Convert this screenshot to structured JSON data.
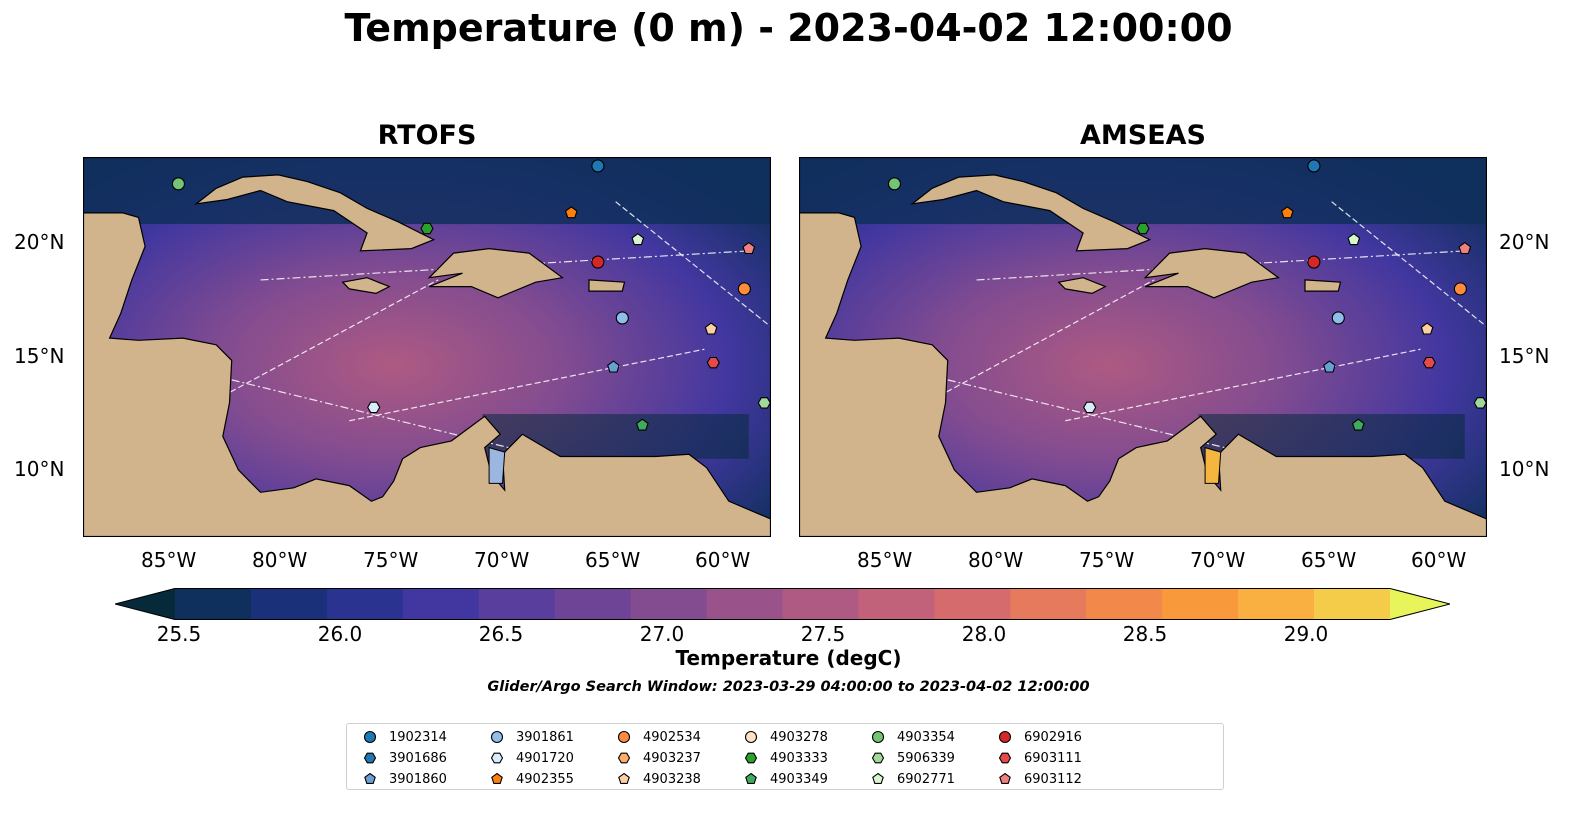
{
  "title": "Temperature (0 m) - 2023-04-02 12:00:00",
  "panels": [
    {
      "title": "RTOFS"
    },
    {
      "title": "AMSEAS"
    }
  ],
  "axes": {
    "lat_labels": [
      "20°N",
      "15°N",
      "10°N"
    ],
    "lon_labels": [
      "85°W",
      "80°W",
      "75°W",
      "70°W",
      "65°W",
      "60°W"
    ],
    "lon_range": [
      -90,
      -59
    ],
    "lat_range": [
      7,
      24
    ]
  },
  "colorbar": {
    "label": "Temperature (degC)",
    "ticks": [
      "25.5",
      "26.0",
      "26.5",
      "27.0",
      "27.5",
      "28.0",
      "28.5",
      "29.0"
    ],
    "min": 25.25,
    "max": 29.25,
    "colors": [
      "#062a3a",
      "#0f2f5c",
      "#1a317a",
      "#2b3390",
      "#4237a0",
      "#5a3e9e",
      "#6e4596",
      "#834c90",
      "#9a538a",
      "#ae5a82",
      "#c2617a",
      "#d56b6c",
      "#e67a5c",
      "#f2894a",
      "#f89a3c",
      "#f9b040",
      "#f5cc4a",
      "#e8f55a"
    ]
  },
  "search_window": "Glider/Argo Search Window: 2023-03-29 04:00:00 to 2023-04-02 12:00:00",
  "legend": [
    {
      "id": "1902314",
      "marker": "circle",
      "color": "#1f77b4"
    },
    {
      "id": "3901686",
      "marker": "hexagon",
      "color": "#1f77b4"
    },
    {
      "id": "3901860",
      "marker": "pentagon",
      "color": "#6a9fd4"
    },
    {
      "id": "3901861",
      "marker": "circle",
      "color": "#8fbfe8"
    },
    {
      "id": "4901720",
      "marker": "hexagon",
      "color": "#d8ecfa"
    },
    {
      "id": "4902355",
      "marker": "pentagon",
      "color": "#ff7f0e"
    },
    {
      "id": "4902534",
      "marker": "circle",
      "color": "#fd8d3c"
    },
    {
      "id": "4903237",
      "marker": "hexagon",
      "color": "#fdae6b"
    },
    {
      "id": "4903238",
      "marker": "pentagon",
      "color": "#fdd0a2"
    },
    {
      "id": "4903278",
      "marker": "circle",
      "color": "#fde0c5"
    },
    {
      "id": "4903333",
      "marker": "hexagon",
      "color": "#2ca02c"
    },
    {
      "id": "4903349",
      "marker": "pentagon",
      "color": "#41ab5d"
    },
    {
      "id": "4903354",
      "marker": "circle",
      "color": "#74c476"
    },
    {
      "id": "5906339",
      "marker": "hexagon",
      "color": "#a1d99b"
    },
    {
      "id": "6902771",
      "marker": "pentagon",
      "color": "#d7f5d0"
    },
    {
      "id": "6902916",
      "marker": "circle",
      "color": "#d62728"
    },
    {
      "id": "6903111",
      "marker": "hexagon",
      "color": "#e34a4a"
    },
    {
      "id": "6903112",
      "marker": "pentagon",
      "color": "#f08080"
    }
  ],
  "floats": [
    {
      "id": "4903354",
      "lon": -85.7,
      "lat": 22.8
    },
    {
      "id": "1902314",
      "lon": -66.8,
      "lat": 23.6
    },
    {
      "id": "4902355",
      "lon": -68.0,
      "lat": 21.5
    },
    {
      "id": "4903333",
      "lon": -74.5,
      "lat": 20.8
    },
    {
      "id": "6902771",
      "lon": -65.0,
      "lat": 20.3
    },
    {
      "id": "6902916",
      "lon": -66.8,
      "lat": 19.3
    },
    {
      "id": "6903112",
      "lon": -60.0,
      "lat": 19.9
    },
    {
      "id": "4902534",
      "lon": -60.2,
      "lat": 18.1
    },
    {
      "id": "3901861",
      "lon": -65.7,
      "lat": 16.8
    },
    {
      "id": "4903238",
      "lon": -61.7,
      "lat": 16.3
    },
    {
      "id": "6903111",
      "lon": -61.6,
      "lat": 14.8
    },
    {
      "id": "3901860",
      "lon": -66.1,
      "lat": 14.6
    },
    {
      "id": "5906339",
      "lon": -59.3,
      "lat": 13.0
    },
    {
      "id": "4901720",
      "lon": -76.9,
      "lat": 12.8
    },
    {
      "id": "4903349",
      "lon": -64.8,
      "lat": 12.0
    }
  ]
}
